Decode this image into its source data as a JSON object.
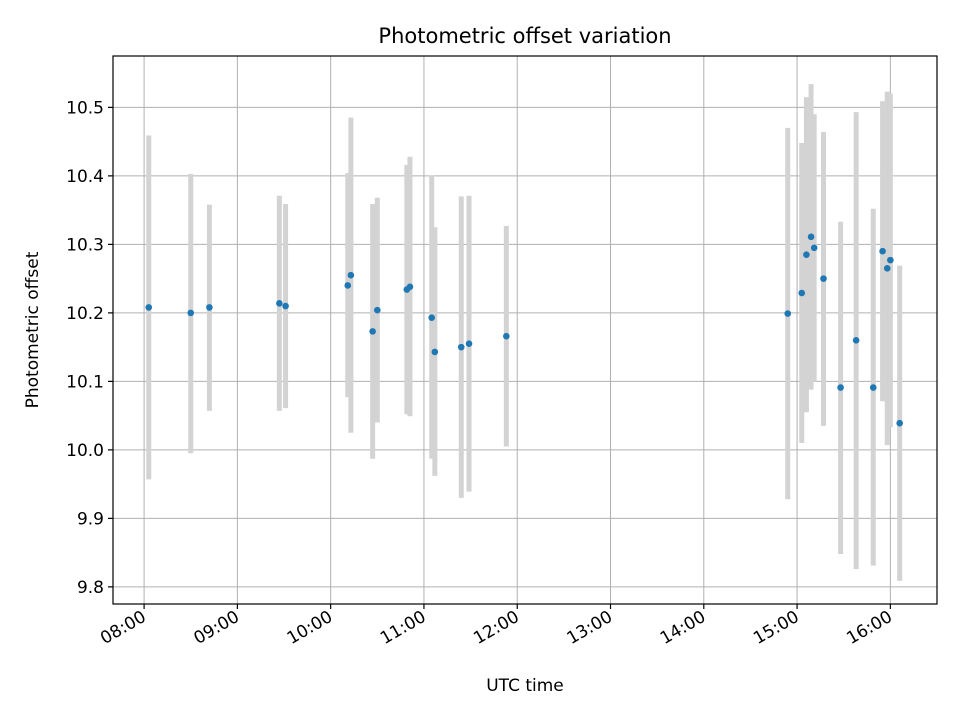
{
  "chart_data": {
    "type": "scatter",
    "title": "Photometric offset variation",
    "xlabel": "UTC time",
    "ylabel": "Photometric offset",
    "xlim": [
      "07:40",
      "16:30"
    ],
    "ylim": [
      9.775,
      10.575
    ],
    "grid": true,
    "x_ticks": [
      "08:00",
      "09:00",
      "10:00",
      "11:00",
      "12:00",
      "13:00",
      "14:00",
      "15:00",
      "16:00"
    ],
    "y_ticks": [
      "9.8",
      "9.9",
      "10.0",
      "10.1",
      "10.2",
      "10.3",
      "10.4",
      "10.5"
    ],
    "series": [
      {
        "marker_color": "#1f77b4",
        "errorbar_color": "#d3d3d3",
        "points": [
          {
            "t": "08:03",
            "y": 10.208,
            "lo": 9.957,
            "hi": 10.459
          },
          {
            "t": "08:30",
            "y": 10.2,
            "lo": 9.995,
            "hi": 10.403
          },
          {
            "t": "08:42",
            "y": 10.208,
            "lo": 10.057,
            "hi": 10.358
          },
          {
            "t": "09:27",
            "y": 10.214,
            "lo": 10.057,
            "hi": 10.371
          },
          {
            "t": "09:31",
            "y": 10.21,
            "lo": 10.061,
            "hi": 10.359
          },
          {
            "t": "10:11",
            "y": 10.24,
            "lo": 10.077,
            "hi": 10.404
          },
          {
            "t": "10:13",
            "y": 10.255,
            "lo": 10.025,
            "hi": 10.485
          },
          {
            "t": "10:27",
            "y": 10.173,
            "lo": 9.987,
            "hi": 10.359
          },
          {
            "t": "10:30",
            "y": 10.204,
            "lo": 10.04,
            "hi": 10.368
          },
          {
            "t": "10:49",
            "y": 10.234,
            "lo": 10.052,
            "hi": 10.416
          },
          {
            "t": "10:51",
            "y": 10.238,
            "lo": 10.049,
            "hi": 10.428
          },
          {
            "t": "11:05",
            "y": 10.193,
            "lo": 9.987,
            "hi": 10.401
          },
          {
            "t": "11:07",
            "y": 10.143,
            "lo": 9.962,
            "hi": 10.325
          },
          {
            "t": "11:24",
            "y": 10.15,
            "lo": 9.93,
            "hi": 10.37
          },
          {
            "t": "11:29",
            "y": 10.155,
            "lo": 9.939,
            "hi": 10.371
          },
          {
            "t": "11:53",
            "y": 10.166,
            "lo": 10.005,
            "hi": 10.327
          },
          {
            "t": "14:54",
            "y": 10.199,
            "lo": 9.928,
            "hi": 10.47
          },
          {
            "t": "15:03",
            "y": 10.229,
            "lo": 10.01,
            "hi": 10.448
          },
          {
            "t": "15:06",
            "y": 10.285,
            "lo": 10.055,
            "hi": 10.515
          },
          {
            "t": "15:09",
            "y": 10.311,
            "lo": 10.088,
            "hi": 10.534
          },
          {
            "t": "15:11",
            "y": 10.295,
            "lo": 10.1,
            "hi": 10.49
          },
          {
            "t": "15:17",
            "y": 10.25,
            "lo": 10.035,
            "hi": 10.464
          },
          {
            "t": "15:28",
            "y": 10.091,
            "lo": 9.848,
            "hi": 10.333
          },
          {
            "t": "15:38",
            "y": 10.16,
            "lo": 9.826,
            "hi": 10.493
          },
          {
            "t": "15:49",
            "y": 10.091,
            "lo": 9.831,
            "hi": 10.352
          },
          {
            "t": "15:55",
            "y": 10.29,
            "lo": 10.071,
            "hi": 10.509
          },
          {
            "t": "15:58",
            "y": 10.265,
            "lo": 10.007,
            "hi": 10.523
          },
          {
            "t": "16:00",
            "y": 10.277,
            "lo": 10.033,
            "hi": 10.52
          },
          {
            "t": "16:06",
            "y": 10.039,
            "lo": 9.809,
            "hi": 10.269
          }
        ]
      }
    ]
  }
}
